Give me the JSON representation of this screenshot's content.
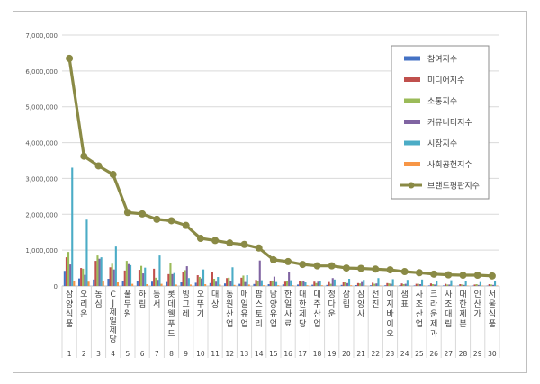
{
  "chart_data": {
    "type": "bar",
    "title": "",
    "xlabel": "",
    "ylabel": "",
    "ylim": [
      0,
      7000000
    ],
    "ytick_labels": [
      "0",
      "1,000,000",
      "2,000,000",
      "3,000,000",
      "4,000,000",
      "5,000,000",
      "6,000,000",
      "7,000,000"
    ],
    "grid": true,
    "legend_position": "top-right",
    "ranks": [
      "1",
      "2",
      "3",
      "4",
      "5",
      "6",
      "7",
      "8",
      "9",
      "10",
      "11",
      "12",
      "13",
      "14",
      "15",
      "16",
      "17",
      "18",
      "19",
      "20",
      "21",
      "22",
      "23",
      "24",
      "25",
      "26",
      "27",
      "28",
      "29",
      "30"
    ],
    "categories": [
      "삼양식품",
      "오리온",
      "농심",
      "CJ제일제당",
      "풀무원",
      "하림",
      "동서",
      "롯데웰푸드",
      "빙그레",
      "오뚜기",
      "대상",
      "동원산업",
      "매일유업",
      "팜스토리",
      "남양유업",
      "한일사료",
      "대한제당",
      "대주산업",
      "정다운",
      "삼립",
      "삼양사",
      "선진",
      "이지바이오",
      "샘표",
      "사조산업",
      "크라운제과",
      "사조대림",
      "대한제분",
      "인산가",
      "서울식품"
    ],
    "series": [
      {
        "name": "참여지수",
        "color": "#4472c4",
        "values": [
          420000,
          210000,
          180000,
          200000,
          150000,
          140000,
          120000,
          110000,
          100000,
          90000,
          80000,
          70000,
          60000,
          55000,
          50000,
          45000,
          40000,
          35000,
          30000,
          30000,
          25000,
          20000,
          20000,
          20000,
          15000,
          15000,
          15000,
          10000,
          10000,
          10000
        ]
      },
      {
        "name": "미디어지수",
        "color": "#c0504d",
        "values": [
          800000,
          500000,
          700000,
          520000,
          430000,
          450000,
          480000,
          330000,
          400000,
          300000,
          390000,
          220000,
          230000,
          170000,
          140000,
          120000,
          150000,
          120000,
          110000,
          100000,
          80000,
          90000,
          80000,
          70000,
          60000,
          70000,
          60000,
          50000,
          40000,
          50000
        ]
      },
      {
        "name": "소통지수",
        "color": "#9bbb59",
        "values": [
          950000,
          480000,
          850000,
          620000,
          700000,
          560000,
          230000,
          650000,
          440000,
          250000,
          200000,
          230000,
          290000,
          130000,
          150000,
          130000,
          120000,
          80000,
          60000,
          100000,
          70000,
          60000,
          70000,
          50000,
          60000,
          50000,
          40000,
          40000,
          50000,
          40000
        ]
      },
      {
        "name": "커뮤니티지수",
        "color": "#8064a2",
        "values": [
          600000,
          310000,
          760000,
          460000,
          610000,
          350000,
          170000,
          330000,
          550000,
          210000,
          120000,
          140000,
          110000,
          710000,
          260000,
          380000,
          150000,
          120000,
          220000,
          80000,
          110000,
          70000,
          60000,
          60000,
          50000,
          40000,
          40000,
          30000,
          30000,
          30000
        ]
      },
      {
        "name": "시장지수",
        "color": "#4bacc6",
        "values": [
          3300000,
          1850000,
          800000,
          1100000,
          580000,
          510000,
          850000,
          360000,
          220000,
          460000,
          250000,
          520000,
          300000,
          160000,
          110000,
          160000,
          100000,
          150000,
          180000,
          200000,
          170000,
          220000,
          190000,
          170000,
          180000,
          130000,
          160000,
          140000,
          110000,
          130000
        ]
      },
      {
        "name": "사회공헌지수",
        "color": "#f79646",
        "values": [
          150000,
          120000,
          140000,
          100000,
          60000,
          50000,
          60000,
          40000,
          40000,
          50000,
          40000,
          30000,
          40000,
          20000,
          20000,
          20000,
          20000,
          20000,
          10000,
          20000,
          10000,
          10000,
          10000,
          10000,
          10000,
          10000,
          10000,
          10000,
          10000,
          10000
        ]
      },
      {
        "name": "브랜드평판지수",
        "color": "#8a8a45",
        "type": "line",
        "values": [
          6350000,
          3620000,
          3350000,
          3110000,
          2050000,
          2010000,
          1860000,
          1820000,
          1690000,
          1330000,
          1270000,
          1200000,
          1160000,
          1060000,
          730000,
          680000,
          600000,
          560000,
          560000,
          500000,
          490000,
          470000,
          450000,
          400000,
          370000,
          330000,
          310000,
          300000,
          300000,
          280000
        ]
      }
    ]
  }
}
